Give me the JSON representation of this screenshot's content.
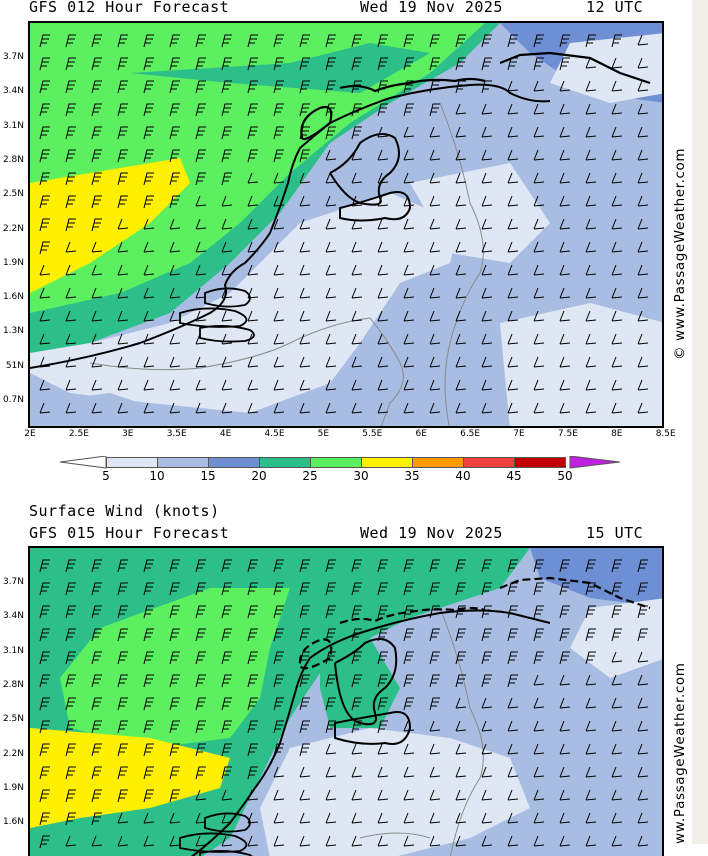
{
  "panel1": {
    "model_line": "GFS 012 Hour Forecast",
    "date_line": "Wed 19 Nov 2025",
    "time_line": "12 UTC",
    "lat_labels": [
      "3.7N",
      "3.4N",
      "3.1N",
      "2.8N",
      "2.5N",
      "2.2N",
      "1.9N",
      "1.6N",
      "1.3N",
      "51N",
      "0.7N"
    ],
    "lon_labels": [
      "2E",
      "2.5E",
      "3E",
      "3.5E",
      "4E",
      "4.5E",
      "5E",
      "5.5E",
      "6E",
      "6.5E",
      "7E",
      "7.5E",
      "8E",
      "8.5E"
    ],
    "watermark": "© www.PassageWeather.com"
  },
  "legend": {
    "values": [
      "5",
      "10",
      "15",
      "20",
      "25",
      "30",
      "35",
      "40",
      "45",
      "50"
    ],
    "colors": [
      "#ffffff",
      "#dfe7f5",
      "#a9bde3",
      "#6f8fd4",
      "#2dbf8a",
      "#5cf060",
      "#fff000",
      "#ff9a00",
      "#f04040",
      "#c00000",
      "#c020e0"
    ]
  },
  "panel2": {
    "title_line": "Surface Wind (knots)",
    "model_line": "GFS 015 Hour Forecast",
    "date_line": "Wed 19 Nov 2025",
    "time_line": "15 UTC",
    "lat_labels": [
      "3.7N",
      "3.4N",
      "3.1N",
      "2.8N",
      "2.5N",
      "2.2N",
      "1.9N",
      "1.6N"
    ],
    "watermark": "ww.PassageWeather.com"
  }
}
